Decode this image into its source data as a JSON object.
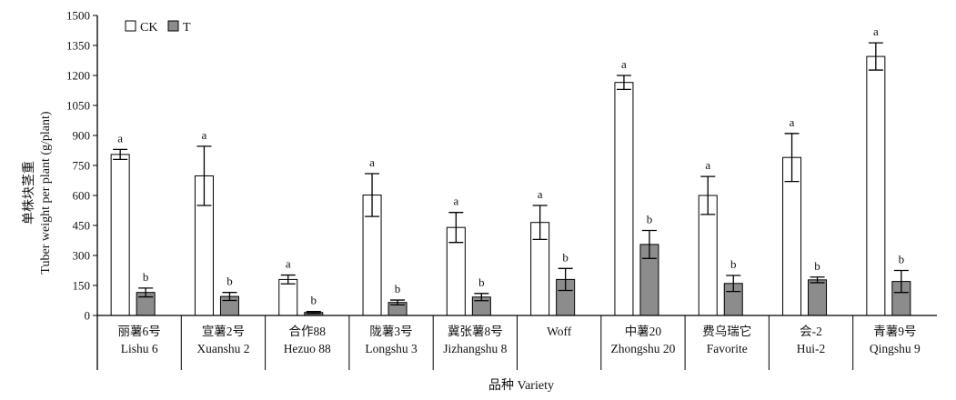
{
  "chart_data": {
    "type": "bar",
    "title": "",
    "xlabel": "品种 Variety",
    "ylabel_cn": "单株块茎重",
    "ylabel_en": "Tuber weight per plant (g/plant)",
    "ylim": [
      0,
      1500
    ],
    "yticks": [
      0,
      150,
      300,
      450,
      600,
      750,
      900,
      1050,
      1200,
      1350,
      1500
    ],
    "legend_position": "top-left",
    "categories": [
      {
        "cn": "丽薯6号",
        "en": "Lishu 6"
      },
      {
        "cn": "宣薯2号",
        "en": "Xuanshu 2"
      },
      {
        "cn": "合作88",
        "en": "Hezuo 88"
      },
      {
        "cn": "陇薯3号",
        "en": "Longshu 3"
      },
      {
        "cn": "冀张薯8号",
        "en": "Jizhangshu 8"
      },
      {
        "cn": "",
        "en": "Woff"
      },
      {
        "cn": "中薯20",
        "en": "Zhongshu 20"
      },
      {
        "cn": "费乌瑞它",
        "en": "Favorite"
      },
      {
        "cn": "会-2",
        "en": "Hui-2"
      },
      {
        "cn": "青薯9号",
        "en": "Qingshu 9"
      }
    ],
    "series": [
      {
        "name": "CK",
        "color": "#ffffff",
        "values": [
          805,
          698,
          180,
          602,
          440,
          465,
          1165,
          600,
          790,
          1295
        ],
        "errors": [
          25,
          148,
          22,
          107,
          75,
          85,
          35,
          95,
          120,
          68
        ],
        "significance": [
          "a",
          "a",
          "a",
          "a",
          "a",
          "a",
          "a",
          "a",
          "a",
          "a"
        ]
      },
      {
        "name": "T",
        "color": "#8c8c8c",
        "values": [
          115,
          95,
          15,
          65,
          92,
          180,
          355,
          160,
          178,
          170
        ],
        "errors": [
          22,
          20,
          5,
          12,
          18,
          55,
          70,
          40,
          14,
          55
        ],
        "significance": [
          "b",
          "b",
          "b",
          "b",
          "b",
          "b",
          "b",
          "b",
          "b",
          "b"
        ]
      }
    ]
  }
}
